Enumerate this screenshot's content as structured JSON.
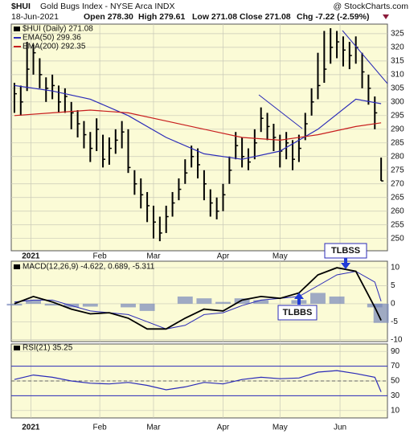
{
  "header": {
    "symbol": "$HUI",
    "name": "Gold Bugs Index - NYSE Arca INDX",
    "source": "@ StockCharts.com",
    "date": "18-Jun-2021",
    "open": "Open 278.30",
    "high": "High 279.61",
    "low": "Low 271.08",
    "close": "Close 271.08",
    "change": "Chg -7.22 (-2.59%)"
  },
  "chart_data": [
    {
      "type": "ohlc",
      "title": "$HUI (Daily) 271.08",
      "xlim": [
        -0.5,
        59
      ],
      "xticks": [
        {
          "value": 2.6,
          "label": "2021"
        },
        {
          "value": 13.5,
          "label": "Feb"
        },
        {
          "value": 22,
          "label": "Mar"
        },
        {
          "value": 33,
          "label": "Apr"
        },
        {
          "value": 42,
          "label": "May"
        },
        {
          "value": 51.5,
          "label": "Jun"
        }
      ],
      "ylim": [
        245.5,
        328.5
      ],
      "yticks": [
        250,
        255,
        260,
        265,
        270,
        275,
        280,
        285,
        290,
        295,
        300,
        305,
        310,
        315,
        320,
        325
      ],
      "grid": true,
      "color": "#000000",
      "close": [
        303,
        300,
        312,
        318,
        310,
        305,
        306,
        300,
        302,
        296,
        292,
        288,
        283,
        290,
        279,
        283,
        286,
        289,
        276,
        270,
        266,
        262,
        256,
        252,
        258,
        263,
        268,
        274,
        280,
        277,
        270,
        263,
        260,
        266,
        275,
        284,
        280,
        278,
        285,
        294,
        291,
        287,
        282,
        285,
        279,
        283,
        292,
        300,
        306,
        312,
        320,
        322,
        319,
        317,
        320,
        311,
        305,
        296,
        271.08
      ],
      "high": [
        307,
        306,
        322,
        321,
        316,
        309,
        310,
        306,
        305,
        300,
        297,
        293,
        289,
        294,
        288,
        287,
        290,
        293,
        290,
        275,
        272,
        267,
        262,
        258,
        262,
        267,
        272,
        279,
        284,
        283,
        275,
        268,
        265,
        270,
        280,
        289,
        287,
        283,
        290,
        298,
        296,
        292,
        288,
        289,
        286,
        288,
        296,
        305,
        318,
        326,
        327,
        326,
        324,
        322,
        324,
        318,
        310,
        302,
        279.61
      ],
      "low": [
        296,
        295,
        304,
        310,
        305,
        300,
        301,
        296,
        296,
        290,
        287,
        283,
        278,
        282,
        276,
        277,
        281,
        283,
        274,
        266,
        261,
        256,
        250,
        249,
        252,
        258,
        264,
        270,
        276,
        272,
        264,
        258,
        257,
        260,
        270,
        279,
        276,
        275,
        279,
        289,
        286,
        282,
        276,
        279,
        275,
        278,
        286,
        295,
        301,
        307,
        314,
        316,
        313,
        312,
        314,
        305,
        299,
        290,
        271.08
      ],
      "series": [
        {
          "name": "EMA(50) 299.36",
          "color": "#2b2bb8",
          "x": [
            0,
            6,
            12,
            18,
            24,
            30,
            36,
            42,
            48,
            54,
            58
          ],
          "values": [
            306,
            304,
            301,
            295,
            287,
            281,
            279,
            282,
            290,
            301,
            299.36
          ]
        },
        {
          "name": "EMA(200) 292.35",
          "color": "#c81e1e",
          "x": [
            0,
            6,
            12,
            18,
            24,
            30,
            36,
            42,
            48,
            54,
            58
          ],
          "values": [
            295,
            296,
            297,
            296,
            293,
            290,
            287,
            286,
            288,
            291,
            292.35
          ]
        }
      ]
    },
    {
      "type": "macd",
      "title": "MACD(12,26,9) -4.622, 0.689, -5.311",
      "xlim": [
        -0.5,
        59
      ],
      "ylim": [
        -10.5,
        11.8
      ],
      "yticks": [
        10,
        5,
        0,
        -5,
        -10
      ],
      "grid": true,
      "x": [
        0,
        3,
        6,
        9,
        12,
        15,
        18,
        21,
        24,
        27,
        30,
        33,
        36,
        39,
        42,
        45,
        48,
        51,
        54,
        57,
        58
      ],
      "series": [
        {
          "name": "MACD",
          "color": "#000000",
          "values": [
            0,
            2,
            0.5,
            -1.5,
            -2.8,
            -2.5,
            -4,
            -7,
            -7,
            -4,
            -1.5,
            -2,
            1,
            2,
            1.5,
            3,
            8,
            10,
            9,
            -1,
            -4.622
          ]
        },
        {
          "name": "Signal",
          "color": "#2b2bb8",
          "values": [
            0.5,
            1,
            1,
            -0.5,
            -2,
            -2.5,
            -3,
            -5,
            -7,
            -6,
            -3,
            -2.5,
            -0.5,
            1,
            1.5,
            2,
            5,
            8,
            9,
            6,
            0.689
          ]
        },
        {
          "name": "Histogram",
          "color": "#7788bb",
          "values": [
            -0.5,
            1,
            -0.5,
            -1,
            -0.8,
            0,
            -1,
            -2,
            0,
            2,
            1.5,
            0.5,
            1.5,
            1,
            0,
            1,
            3,
            2,
            0,
            -1,
            -5.311
          ]
        }
      ],
      "annotations": [
        "TLBBS",
        "TLBSS"
      ]
    },
    {
      "type": "rsi",
      "title": "RSI(21) 35.25",
      "xlim": [
        -0.5,
        59
      ],
      "xticks": [
        {
          "value": 2.6,
          "label": "2021"
        },
        {
          "value": 13.5,
          "label": "Feb"
        },
        {
          "value": 22,
          "label": "Mar"
        },
        {
          "value": 33,
          "label": "Apr"
        },
        {
          "value": 42,
          "label": "May"
        },
        {
          "value": 51.5,
          "label": "Jun"
        }
      ],
      "ylim": [
        0,
        100
      ],
      "yticks": [
        90,
        70,
        50,
        30,
        10
      ],
      "grid": true,
      "color": "#2b2bb8",
      "x": [
        0,
        3,
        6,
        9,
        12,
        15,
        18,
        21,
        24,
        27,
        30,
        33,
        36,
        39,
        42,
        45,
        48,
        51,
        54,
        57,
        58
      ],
      "values": [
        52,
        58,
        55,
        50,
        47,
        46,
        48,
        44,
        38,
        42,
        48,
        46,
        52,
        55,
        53,
        54,
        62,
        64,
        60,
        55,
        35.25
      ]
    }
  ]
}
